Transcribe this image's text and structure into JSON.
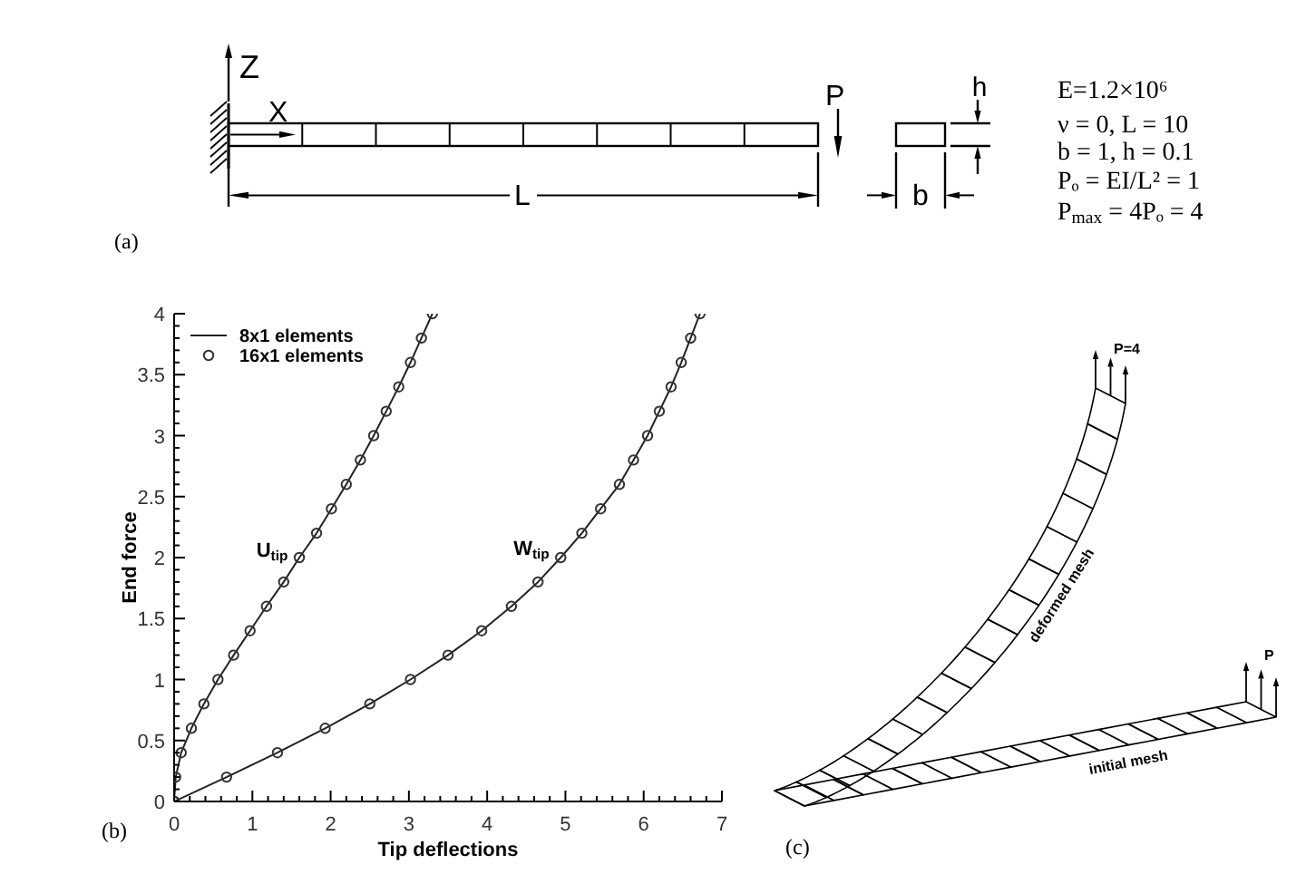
{
  "chart_data": [
    {
      "type": "other",
      "annotations": [
        "Z",
        "X",
        "P",
        "L",
        "b",
        "h",
        "E=1.2×10⁶",
        "ν = 0, L = 10",
        "b = 1, h = 0.1",
        "Pₒ = EI/L² = 1",
        "P$_{max}$ = 4Pₒ = 4",
        "(a)"
      ]
    },
    {
      "type": "line",
      "xlabel": "Tip deflections",
      "ylabel": "End force",
      "annotations": [
        "(b)",
        "U$_{tip}$",
        "W$_{tip}$"
      ],
      "xlim": [
        0,
        7
      ],
      "ylim": [
        0,
        4
      ],
      "xticks": [
        0,
        {
          "value": 0.2,
          "label": null
        },
        {
          "value": 0.4,
          "label": null
        },
        {
          "value": 0.6,
          "label": null
        },
        {
          "value": 0.8,
          "label": null
        },
        1,
        {
          "value": 1.2,
          "label": null
        },
        {
          "value": 1.4,
          "label": null
        },
        {
          "value": 1.6,
          "label": null
        },
        {
          "value": 1.8,
          "label": null
        },
        2,
        {
          "value": 2.2,
          "label": null
        },
        {
          "value": 2.4,
          "label": null
        },
        {
          "value": 2.6,
          "label": null
        },
        {
          "value": 2.8,
          "label": null
        },
        3,
        {
          "value": 3.2,
          "label": null
        },
        {
          "value": 3.4,
          "label": null
        },
        {
          "value": 3.6,
          "label": null
        },
        {
          "value": 3.8,
          "label": null
        },
        4,
        {
          "value": 4.2,
          "label": null
        },
        {
          "value": 4.4,
          "label": null
        },
        {
          "value": 4.6,
          "label": null
        },
        {
          "value": 4.8,
          "label": null
        },
        5,
        {
          "value": 5.2,
          "label": null
        },
        {
          "value": 5.4,
          "label": null
        },
        {
          "value": 5.6,
          "label": null
        },
        {
          "value": 5.8,
          "label": null
        },
        6,
        {
          "value": 6.2,
          "label": null
        },
        {
          "value": 6.4,
          "label": null
        },
        {
          "value": 6.6,
          "label": null
        },
        {
          "value": 6.8,
          "label": null
        },
        7
      ],
      "yticks": [
        0,
        {
          "value": 0.1,
          "label": null
        },
        {
          "value": 0.2,
          "label": null
        },
        {
          "value": 0.3,
          "label": null
        },
        {
          "value": 0.4,
          "label": null
        },
        0.5,
        {
          "value": 0.6,
          "label": null
        },
        {
          "value": 0.7,
          "label": null
        },
        {
          "value": 0.8,
          "label": null
        },
        {
          "value": 0.9,
          "label": null
        },
        1,
        {
          "value": 1.1,
          "label": null
        },
        {
          "value": 1.2,
          "label": null
        },
        {
          "value": 1.3,
          "label": null
        },
        {
          "value": 1.4,
          "label": null
        },
        1.5,
        {
          "value": 1.6,
          "label": null
        },
        {
          "value": 1.7,
          "label": null
        },
        {
          "value": 1.8,
          "label": null
        },
        {
          "value": 1.9,
          "label": null
        },
        2,
        {
          "value": 2.1,
          "label": null
        },
        {
          "value": 2.2,
          "label": null
        },
        {
          "value": 2.3,
          "label": null
        },
        {
          "value": 2.4,
          "label": null
        },
        2.5,
        {
          "value": 2.6,
          "label": null
        },
        {
          "value": 2.7,
          "label": null
        },
        {
          "value": 2.8,
          "label": null
        },
        {
          "value": 2.9,
          "label": null
        },
        3,
        {
          "value": 3.1,
          "label": null
        },
        {
          "value": 3.2,
          "label": null
        },
        {
          "value": 3.3,
          "label": null
        },
        {
          "value": 3.4,
          "label": null
        },
        3.5,
        {
          "value": 3.6,
          "label": null
        },
        {
          "value": 3.7,
          "label": null
        },
        {
          "value": 3.8,
          "label": null
        },
        {
          "value": 3.9,
          "label": null
        },
        4
      ],
      "legend": "top left",
      "series": [
        {
          "name": "8x1 elements",
          "type": "line",
          "color": "#222222",
          "x": [
            0,
            0.02,
            0.09,
            0.22,
            0.38,
            0.56,
            0.76,
            0.97,
            1.18,
            1.4,
            1.6,
            1.82,
            2.01,
            2.2,
            2.38,
            2.55,
            2.71,
            2.87,
            3.02,
            3.16,
            3.3
          ],
          "values": [
            0,
            0.2,
            0.4,
            0.6,
            0.8,
            1,
            1.2,
            1.4,
            1.6,
            1.8,
            2,
            2.2,
            2.4,
            2.6,
            2.8,
            3,
            3.2,
            3.4,
            3.6,
            3.8,
            4
          ]
        },
        {
          "type": "line",
          "color": "#222222",
          "x": [
            0,
            0.67,
            1.32,
            1.93,
            2.5,
            3.02,
            3.5,
            3.93,
            4.31,
            4.65,
            4.94,
            5.21,
            5.45,
            5.69,
            5.87,
            6.05,
            6.2,
            6.35,
            6.48,
            6.6,
            6.72
          ],
          "values": [
            0,
            0.2,
            0.4,
            0.6,
            0.8,
            1,
            1.2,
            1.4,
            1.6,
            1.8,
            2,
            2.2,
            2.4,
            2.6,
            2.8,
            3,
            3.2,
            3.4,
            3.6,
            3.8,
            4
          ]
        },
        {
          "name": "16x1 elements",
          "type": "scatter",
          "color": "#333333",
          "marker": "circle",
          "x": [
            0,
            0.02,
            0.09,
            0.22,
            0.38,
            0.56,
            0.76,
            0.97,
            1.18,
            1.4,
            1.6,
            1.82,
            2.01,
            2.2,
            2.38,
            2.55,
            2.71,
            2.87,
            3.02,
            3.16,
            3.3
          ],
          "values": [
            0,
            0.2,
            0.4,
            0.6,
            0.8,
            1,
            1.2,
            1.4,
            1.6,
            1.8,
            2,
            2.2,
            2.4,
            2.6,
            2.8,
            3,
            3.2,
            3.4,
            3.6,
            3.8,
            4
          ]
        },
        {
          "type": "scatter",
          "color": "#333333",
          "marker": "circle",
          "x": [
            0,
            0.67,
            1.32,
            1.93,
            2.5,
            3.02,
            3.5,
            3.93,
            4.31,
            4.65,
            4.94,
            5.21,
            5.45,
            5.69,
            5.87,
            6.05,
            6.2,
            6.35,
            6.48,
            6.6,
            6.72
          ],
          "values": [
            0,
            0.2,
            0.4,
            0.6,
            0.8,
            1,
            1.2,
            1.4,
            1.6,
            1.8,
            2,
            2.2,
            2.4,
            2.6,
            2.8,
            3,
            3.2,
            3.4,
            3.6,
            3.8,
            4
          ]
        }
      ]
    },
    {
      "type": "other",
      "annotations": [
        "P=4",
        "deformed mesh",
        "initial mesh",
        "P",
        "(c)"
      ]
    }
  ]
}
